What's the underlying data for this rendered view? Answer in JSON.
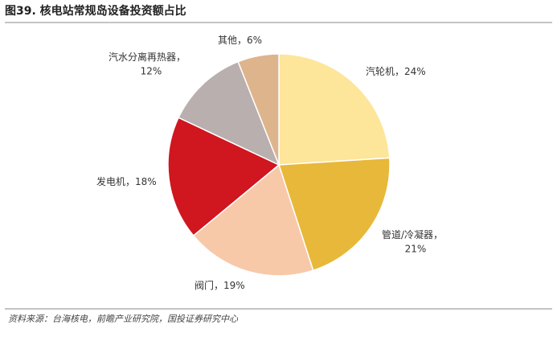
{
  "chart_data": {
    "type": "pie",
    "title": "图39. 核电站常规岛设备投资额占比",
    "categories": [
      "汽轮机",
      "管道/冷凝器",
      "阀门",
      "发电机",
      "汽水分离再热器",
      "其他"
    ],
    "values": [
      24,
      21,
      19,
      18,
      12,
      6
    ],
    "value_labels": [
      "24%",
      "21%",
      "19%",
      "18%",
      "12%",
      "6%"
    ],
    "label_separator": "，",
    "colors": [
      "#fde59a",
      "#e8b83a",
      "#f7c9a9",
      "#d0161e",
      "#b9afae",
      "#deb48c"
    ],
    "source": "资料来源：台海核电，前瞻产业研究院，国投证券研究中心"
  }
}
